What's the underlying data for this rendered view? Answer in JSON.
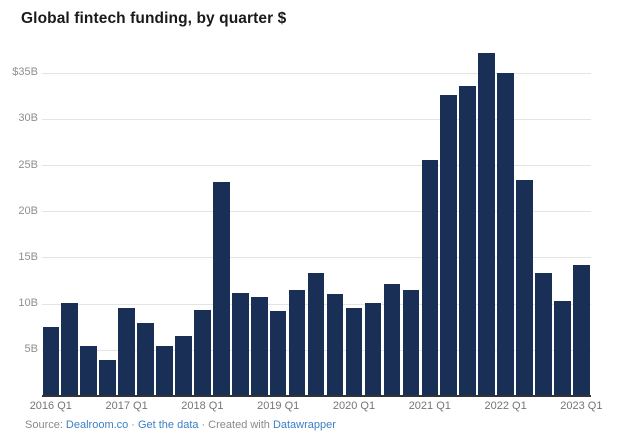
{
  "title": "Global fintech funding, by quarter $",
  "colors": {
    "background": "#ffffff",
    "title": "#1a1a1a",
    "bar": "#1a2f55",
    "grid": "#e4e4e4",
    "axis_line": "#333333",
    "y_tick_label": "#8f8f8f",
    "x_tick_label": "#757575",
    "footer_text": "#8a8a8a",
    "link": "#3b7fc4"
  },
  "footer": {
    "label": "Source:",
    "link1": "Dealroom.co",
    "sep1": "·",
    "link2": "Get the data",
    "sep2": "·",
    "created": "Created with",
    "link3": "Datawrapper"
  },
  "chart_data": {
    "type": "bar",
    "title": "Global fintech funding, by quarter $",
    "unit": "USD billions",
    "categories": [
      "2016 Q1",
      "2016 Q2",
      "2016 Q3",
      "2016 Q4",
      "2017 Q1",
      "2017 Q2",
      "2017 Q3",
      "2017 Q4",
      "2018 Q1",
      "2018 Q2",
      "2018 Q3",
      "2018 Q4",
      "2019 Q1",
      "2019 Q2",
      "2019 Q3",
      "2019 Q4",
      "2020 Q1",
      "2020 Q2",
      "2020 Q3",
      "2020 Q4",
      "2021 Q1",
      "2021 Q2",
      "2021 Q3",
      "2021 Q4",
      "2022 Q1",
      "2022 Q2",
      "2022 Q3",
      "2022 Q4",
      "2023 Q1"
    ],
    "values": [
      7.5,
      10.1,
      5.4,
      3.9,
      9.5,
      7.9,
      5.4,
      6.5,
      9.3,
      23.2,
      11.2,
      10.7,
      9.2,
      11.5,
      13.3,
      11.0,
      9.5,
      10.1,
      12.1,
      11.5,
      25.5,
      32.6,
      33.5,
      37.1,
      35.0,
      23.4,
      13.3,
      10.3,
      14.2
    ],
    "x_tick_labels": [
      "2016 Q1",
      "2017 Q1",
      "2018 Q1",
      "2019 Q1",
      "2020 Q1",
      "2021 Q1",
      "2022 Q1",
      "2023 Q1"
    ],
    "x_tick_every": 4,
    "y_ticks": [
      5,
      10,
      15,
      20,
      25,
      30,
      35
    ],
    "y_tick_labels": [
      "5B",
      "10B",
      "15B",
      "20B",
      "25B",
      "30B",
      "$35B"
    ],
    "ylim": [
      0,
      40
    ],
    "grid": "horizontal",
    "legend": "none"
  }
}
